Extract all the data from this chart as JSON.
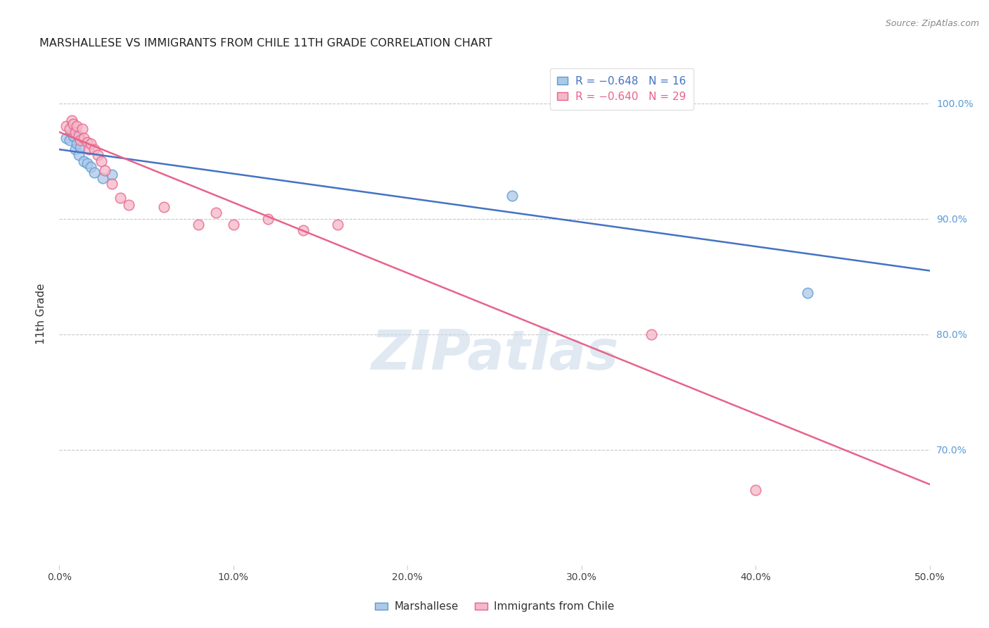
{
  "title": "MARSHALLESE VS IMMIGRANTS FROM CHILE 11TH GRADE CORRELATION CHART",
  "source": "Source: ZipAtlas.com",
  "ylabel_label": "11th Grade",
  "xlim": [
    0.0,
    0.5
  ],
  "ylim": [
    0.6,
    1.035
  ],
  "xtick_labels": [
    "0.0%",
    "10.0%",
    "20.0%",
    "30.0%",
    "40.0%",
    "50.0%"
  ],
  "xtick_vals": [
    0.0,
    0.1,
    0.2,
    0.3,
    0.4,
    0.5
  ],
  "ytick_labels": [
    "70.0%",
    "80.0%",
    "90.0%",
    "100.0%"
  ],
  "ytick_vals": [
    0.7,
    0.8,
    0.9,
    1.0
  ],
  "blue_R": "-0.648",
  "blue_N": "16",
  "pink_R": "-0.640",
  "pink_N": "29",
  "blue_color": "#aec8e8",
  "pink_color": "#f4b8c8",
  "blue_edge_color": "#5b9bd5",
  "pink_edge_color": "#e8638a",
  "blue_line_color": "#4472c4",
  "pink_line_color": "#e8638a",
  "watermark": "ZIPatlas",
  "blue_scatter_x": [
    0.004,
    0.006,
    0.007,
    0.008,
    0.009,
    0.01,
    0.011,
    0.012,
    0.014,
    0.016,
    0.018,
    0.02,
    0.025,
    0.03,
    0.26,
    0.43
  ],
  "blue_scatter_y": [
    0.97,
    0.968,
    0.975,
    0.972,
    0.96,
    0.965,
    0.955,
    0.962,
    0.95,
    0.948,
    0.945,
    0.94,
    0.935,
    0.938,
    0.92,
    0.836
  ],
  "pink_scatter_x": [
    0.004,
    0.006,
    0.007,
    0.008,
    0.009,
    0.01,
    0.011,
    0.012,
    0.013,
    0.014,
    0.016,
    0.017,
    0.018,
    0.02,
    0.022,
    0.024,
    0.026,
    0.03,
    0.035,
    0.04,
    0.06,
    0.08,
    0.09,
    0.1,
    0.12,
    0.14,
    0.16,
    0.34,
    0.4
  ],
  "pink_scatter_y": [
    0.98,
    0.978,
    0.985,
    0.982,
    0.975,
    0.98,
    0.972,
    0.968,
    0.978,
    0.97,
    0.966,
    0.96,
    0.965,
    0.96,
    0.955,
    0.95,
    0.942,
    0.93,
    0.918,
    0.912,
    0.91,
    0.895,
    0.905,
    0.895,
    0.9,
    0.89,
    0.895,
    0.8,
    0.665
  ],
  "blue_line_x": [
    0.0,
    0.5
  ],
  "blue_line_y": [
    0.96,
    0.855
  ],
  "pink_line_x": [
    0.0,
    0.5
  ],
  "pink_line_y": [
    0.975,
    0.67
  ],
  "background_color": "#ffffff",
  "grid_color": "#c8c8c8",
  "legend1_blue_text": "R = −0.648   N = 16",
  "legend1_pink_text": "R = −0.640   N = 29",
  "legend2_blue_text": "Marshallese",
  "legend2_pink_text": "Immigrants from Chile"
}
